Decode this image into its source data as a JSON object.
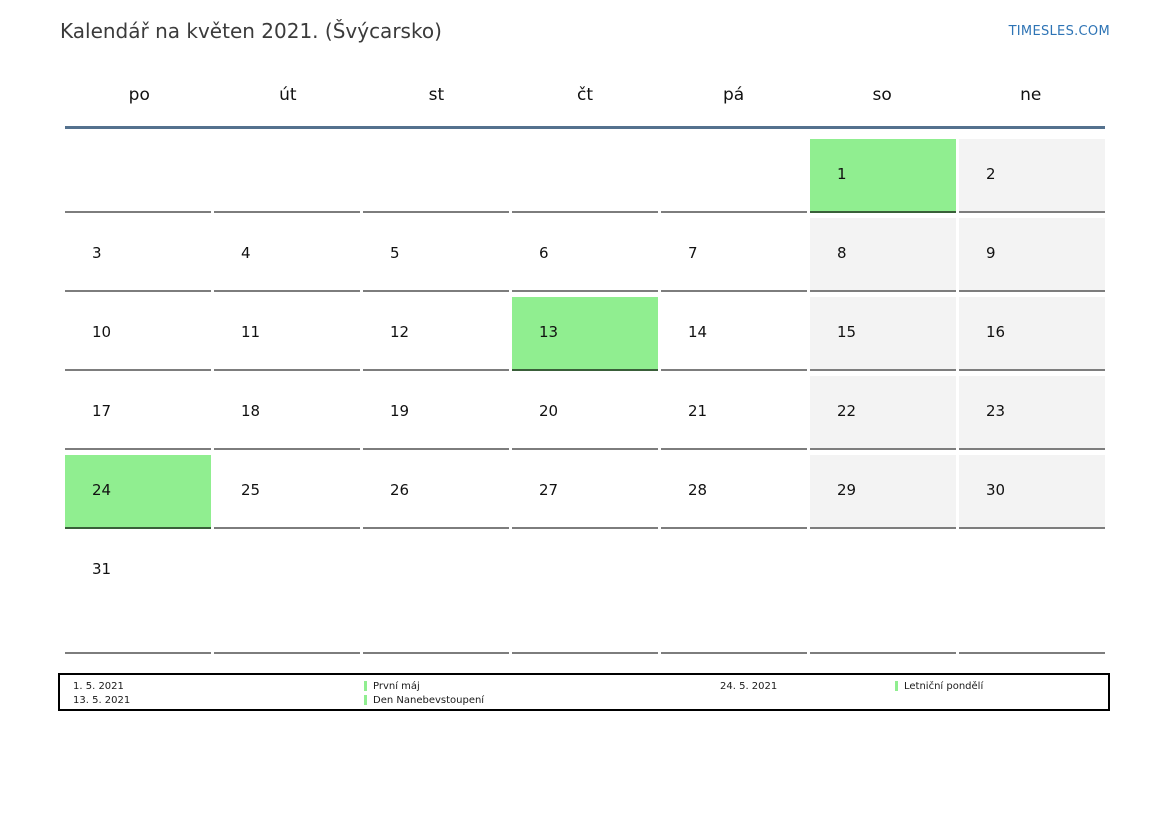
{
  "page": {
    "title": "Kalendář na květen 2021. (Švýcarsko)",
    "brand": "TIMESLES.COM"
  },
  "calendar": {
    "day_headers": [
      "po",
      "út",
      "st",
      "čt",
      "pá",
      "so",
      "ne"
    ],
    "weeks": [
      [
        null,
        null,
        null,
        null,
        null,
        {
          "day": "1",
          "type": "holiday"
        },
        {
          "day": "2",
          "type": "weekend"
        }
      ],
      [
        {
          "day": "3"
        },
        {
          "day": "4"
        },
        {
          "day": "5"
        },
        {
          "day": "6"
        },
        {
          "day": "7"
        },
        {
          "day": "8",
          "type": "weekend"
        },
        {
          "day": "9",
          "type": "weekend"
        }
      ],
      [
        {
          "day": "10"
        },
        {
          "day": "11"
        },
        {
          "day": "12"
        },
        {
          "day": "13",
          "type": "holiday"
        },
        {
          "day": "14"
        },
        {
          "day": "15",
          "type": "weekend"
        },
        {
          "day": "16",
          "type": "weekend"
        }
      ],
      [
        {
          "day": "17"
        },
        {
          "day": "18"
        },
        {
          "day": "19"
        },
        {
          "day": "20"
        },
        {
          "day": "21"
        },
        {
          "day": "22",
          "type": "weekend"
        },
        {
          "day": "23",
          "type": "weekend"
        }
      ],
      [
        {
          "day": "24",
          "type": "holiday"
        },
        {
          "day": "25"
        },
        {
          "day": "26"
        },
        {
          "day": "27"
        },
        {
          "day": "28"
        },
        {
          "day": "29",
          "type": "weekend"
        },
        {
          "day": "30",
          "type": "weekend"
        }
      ],
      [
        {
          "day": "31"
        },
        null,
        null,
        null,
        null,
        null,
        null
      ]
    ]
  },
  "legend": {
    "groups": [
      {
        "dates": [
          "1. 5. 2021",
          "13. 5. 2021"
        ],
        "holidays": [
          "První máj",
          "Den Nanebevstoupení"
        ]
      },
      {
        "dates": [
          "24. 5. 2021"
        ],
        "holidays": [
          "Letniční pondělí"
        ]
      }
    ]
  },
  "colors": {
    "holiday_green": "#90ee90",
    "weekend_gray": "#f3f3f3",
    "header_line_blue": "#54718e",
    "brand_blue": "#2e74b5",
    "cell_border_gray": "#7d7d7d"
  }
}
